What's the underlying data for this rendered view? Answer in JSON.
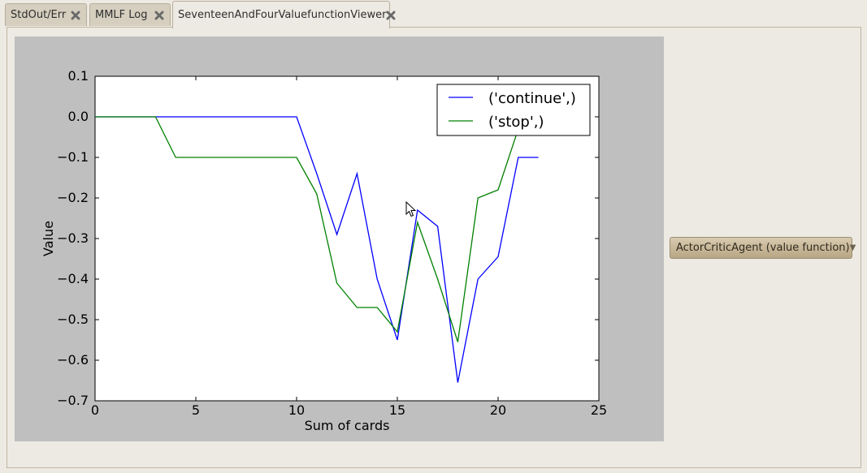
{
  "tabs": [
    {
      "label": "StdOut/Err",
      "active": false
    },
    {
      "label": "MMLF Log",
      "active": false
    },
    {
      "label": "SeventeenAndFourValuefunctionViewer",
      "active": true
    }
  ],
  "dropdown": {
    "selected": "ActorCriticAgent (value function)"
  },
  "chart_data": {
    "type": "line",
    "xlabel": "Sum of cards",
    "ylabel": "Value",
    "xlim": [
      0,
      25
    ],
    "ylim": [
      -0.7,
      0.1
    ],
    "xticks": [
      0,
      5,
      10,
      15,
      20,
      25
    ],
    "yticks": [
      0.1,
      0.0,
      -0.1,
      -0.2,
      -0.3,
      -0.4,
      -0.5,
      -0.6,
      -0.7
    ],
    "legend": "top-right",
    "grid": false,
    "series": [
      {
        "name": "('continue',)",
        "color": "#0000ff",
        "x": [
          0,
          1,
          2,
          3,
          4,
          5,
          6,
          7,
          8,
          9,
          10,
          11,
          12,
          13,
          14,
          15,
          16,
          17,
          18,
          19,
          20,
          21,
          22
        ],
        "y": [
          0,
          0,
          0,
          0,
          0,
          0,
          0,
          0,
          0,
          0,
          0,
          -0.14,
          -0.29,
          -0.14,
          -0.4,
          -0.55,
          -0.23,
          -0.27,
          -0.655,
          -0.4,
          -0.345,
          -0.1,
          -0.1
        ]
      },
      {
        "name": "('stop',)",
        "color": "#008000",
        "x": [
          0,
          1,
          2,
          3,
          4,
          5,
          6,
          7,
          8,
          9,
          10,
          11,
          12,
          13,
          14,
          15,
          16,
          17,
          18,
          19,
          20,
          21
        ],
        "y": [
          0,
          0,
          0,
          0,
          -0.1,
          -0.1,
          -0.1,
          -0.1,
          -0.1,
          -0.1,
          -0.1,
          -0.19,
          -0.41,
          -0.47,
          -0.47,
          -0.53,
          -0.26,
          -0.4,
          -0.555,
          -0.2,
          -0.18,
          -0.03
        ]
      }
    ]
  }
}
